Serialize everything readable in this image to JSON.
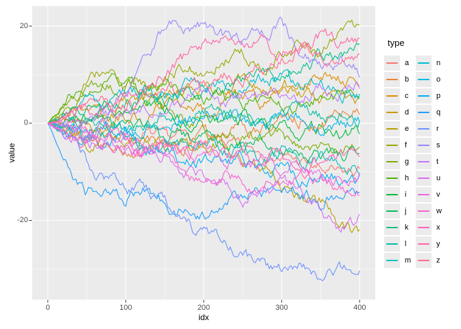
{
  "style": {
    "figure_bg": "#ffffff",
    "panel_bg": "#ebebeb",
    "grid_color": "#ffffff",
    "tick_mark_color": "#333333",
    "tick_text_color": "#4d4d4d",
    "legend_key_bg": "#ebebeb"
  },
  "axes": {
    "x": {
      "title": "idx",
      "ticks": [
        0,
        100,
        200,
        300,
        400
      ],
      "minor": [
        50,
        150,
        250,
        350
      ]
    },
    "y": {
      "title": "value",
      "ticks": [
        20,
        0,
        -20
      ],
      "minor": [
        10,
        -10,
        -30
      ]
    }
  },
  "legend": {
    "title": "type",
    "position": "right",
    "columns": 2
  },
  "chart_data": {
    "type": "line",
    "title": "",
    "xlabel": "idx",
    "ylabel": "value",
    "xlim": [
      -20,
      420
    ],
    "ylim": [
      -36.3,
      24.1
    ],
    "grid": true,
    "legend_position": "right",
    "x_step": 25,
    "x_grid": [
      0,
      25,
      50,
      75,
      100,
      125,
      150,
      175,
      200,
      225,
      250,
      275,
      300,
      325,
      350,
      375,
      400
    ],
    "series": [
      {
        "name": "a",
        "color": "#F8766D",
        "values": [
          0,
          -1,
          -2,
          -1,
          -3,
          -2,
          -4,
          -3,
          -5,
          -4,
          -6,
          -5,
          -7,
          -8,
          -10,
          -11,
          -10
        ]
      },
      {
        "name": "b",
        "color": "#EB8335",
        "values": [
          0,
          -2,
          -4,
          -5,
          -6,
          -4,
          -3,
          -5,
          -2,
          -3,
          -1,
          -2,
          0,
          1,
          -1,
          2,
          3
        ]
      },
      {
        "name": "c",
        "color": "#DC8D00",
        "values": [
          0,
          1,
          -1,
          0,
          2,
          1,
          3,
          4,
          2,
          5,
          6,
          4,
          7,
          8,
          10,
          9,
          10
        ]
      },
      {
        "name": "d",
        "color": "#C99800",
        "values": [
          0,
          2,
          3,
          1,
          4,
          6,
          5,
          7,
          8,
          6,
          9,
          7,
          8,
          6,
          4,
          6,
          5
        ]
      },
      {
        "name": "e",
        "color": "#B3A000",
        "values": [
          0,
          -1,
          -3,
          -2,
          -4,
          -3,
          -5,
          -4,
          -6,
          -5,
          -8,
          -9,
          -13,
          -15,
          -16,
          -21,
          -23
        ]
      },
      {
        "name": "f",
        "color": "#99A800",
        "values": [
          0,
          4,
          8,
          11,
          7,
          8,
          9,
          12,
          11,
          13,
          15,
          12,
          14,
          16,
          15,
          18,
          19
        ]
      },
      {
        "name": "g",
        "color": "#78AE00",
        "values": [
          0,
          3,
          6,
          7,
          8,
          5,
          3,
          1,
          -1,
          -3,
          -2,
          -4,
          -3,
          -5,
          -4,
          -6,
          -5
        ]
      },
      {
        "name": "h",
        "color": "#49B500",
        "values": [
          0,
          5,
          8,
          9,
          7,
          6,
          8,
          7,
          5,
          6,
          4,
          5,
          3,
          4,
          6,
          5,
          6
        ]
      },
      {
        "name": "i",
        "color": "#00BA38",
        "values": [
          0,
          2,
          1,
          3,
          2,
          4,
          3,
          1,
          2,
          0,
          1,
          -1,
          0,
          -2,
          -1,
          -3,
          -2
        ]
      },
      {
        "name": "j",
        "color": "#00BD61",
        "values": [
          0,
          -1,
          1,
          0,
          -2,
          -1,
          -3,
          -2,
          -4,
          -3,
          -5,
          -4,
          -6,
          -5,
          -7,
          -6,
          -6
        ]
      },
      {
        "name": "k",
        "color": "#00BF85",
        "values": [
          0,
          1,
          3,
          2,
          4,
          6,
          5,
          7,
          6,
          8,
          9,
          11,
          10,
          12,
          14,
          15,
          16
        ]
      },
      {
        "name": "l",
        "color": "#00C0A2",
        "values": [
          0,
          -1,
          0,
          1,
          -1,
          0,
          2,
          1,
          3,
          2,
          1,
          0,
          2,
          3,
          1,
          2,
          2
        ]
      },
      {
        "name": "m",
        "color": "#00C0BC",
        "values": [
          0,
          -2,
          -1,
          -3,
          -2,
          -4,
          -3,
          -5,
          -4,
          -6,
          -5,
          -7,
          -6,
          -8,
          -7,
          -9,
          -9
        ]
      },
      {
        "name": "n",
        "color": "#00BDD2",
        "values": [
          0,
          2,
          4,
          3,
          5,
          7,
          6,
          8,
          7,
          9,
          8,
          10,
          9,
          7,
          8,
          6,
          6
        ]
      },
      {
        "name": "o",
        "color": "#00B7E5",
        "values": [
          0,
          -2,
          -3,
          -1,
          -2,
          0,
          -1,
          1,
          0,
          2,
          1,
          -1,
          0,
          1,
          -1,
          0,
          0
        ]
      },
      {
        "name": "p",
        "color": "#00ADF4",
        "values": [
          0,
          -1,
          -3,
          -4,
          -2,
          -5,
          -6,
          -8,
          -7,
          -9,
          -8,
          -10,
          -9,
          -11,
          -10,
          -12,
          -12
        ]
      },
      {
        "name": "q",
        "color": "#219EFE",
        "values": [
          0,
          -8,
          -14,
          -13,
          -15,
          -13,
          -16,
          -18,
          -20,
          -17,
          -15,
          -14,
          -13,
          -14,
          -16,
          -14,
          -15
        ]
      },
      {
        "name": "r",
        "color": "#6C92FF",
        "values": [
          0,
          -3,
          -8,
          -12,
          -13,
          -14,
          -17,
          -21,
          -23,
          -25,
          -27,
          -29,
          -31,
          -29,
          -33,
          -31,
          -30
        ]
      },
      {
        "name": "s",
        "color": "#9B85FF",
        "values": [
          0,
          -1,
          -2,
          0,
          6,
          14,
          20,
          19,
          20,
          18,
          17,
          19,
          21,
          15,
          11,
          13,
          11
        ]
      },
      {
        "name": "t",
        "color": "#BE79FC",
        "values": [
          0,
          1,
          0,
          2,
          1,
          3,
          2,
          4,
          5,
          3,
          6,
          5,
          7,
          6,
          8,
          7,
          8
        ]
      },
      {
        "name": "u",
        "color": "#D86DF3",
        "values": [
          0,
          -2,
          -4,
          -3,
          -5,
          -7,
          -6,
          -9,
          -11,
          -13,
          -16,
          -14,
          -12,
          -13,
          -18,
          -22,
          -20
        ]
      },
      {
        "name": "v",
        "color": "#EB66E4",
        "values": [
          0,
          -1,
          -2,
          -4,
          -3,
          -5,
          -4,
          -6,
          -8,
          -7,
          -9,
          -8,
          -10,
          -9,
          -11,
          -12,
          -11
        ]
      },
      {
        "name": "w",
        "color": "#F663D1",
        "values": [
          0,
          -2,
          -3,
          -5,
          -4,
          -6,
          -8,
          -10,
          -13,
          -11,
          -12,
          -13,
          -10,
          -11,
          -12,
          -13,
          -13
        ]
      },
      {
        "name": "x",
        "color": "#FE62BA",
        "values": [
          0,
          1,
          -1,
          -2,
          -3,
          -5,
          -4,
          -6,
          -5,
          -7,
          -6,
          -8,
          -7,
          -9,
          -8,
          -7,
          -7
        ]
      },
      {
        "name": "y",
        "color": "#FF63A6",
        "values": [
          0,
          2,
          4,
          3,
          6,
          8,
          10,
          13,
          16,
          18,
          15,
          17,
          14,
          16,
          18,
          17,
          17
        ]
      },
      {
        "name": "z",
        "color": "#FF6C91",
        "values": [
          0,
          1,
          2,
          4,
          3,
          5,
          7,
          6,
          8,
          10,
          9,
          11,
          13,
          15,
          14,
          13,
          13
        ]
      }
    ]
  }
}
